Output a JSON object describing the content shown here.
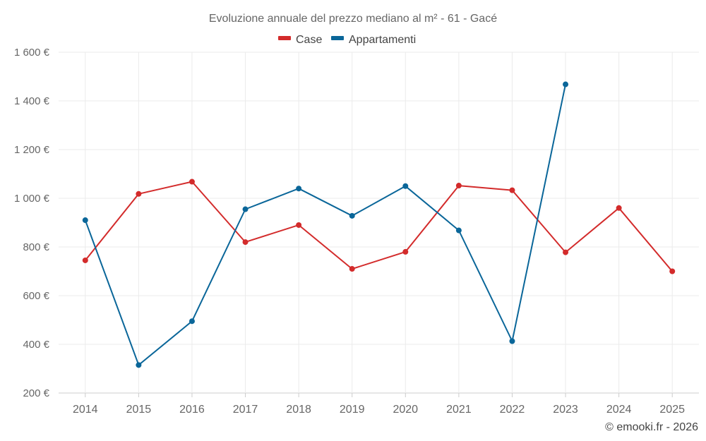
{
  "chart_data": {
    "type": "line",
    "title": "Evoluzione annuale del prezzo mediano al m² - 61 - Gacé",
    "categories": [
      "2014",
      "2015",
      "2016",
      "2017",
      "2018",
      "2019",
      "2020",
      "2021",
      "2022",
      "2023",
      "2024",
      "2025"
    ],
    "series": [
      {
        "name": "Case",
        "color": "#d32b2b",
        "values": [
          745,
          1018,
          1068,
          820,
          890,
          710,
          780,
          1052,
          1033,
          778,
          960,
          700
        ]
      },
      {
        "name": "Appartamenti",
        "color": "#0a6699",
        "values": [
          910,
          315,
          495,
          955,
          1040,
          928,
          1050,
          868,
          413,
          1468,
          null,
          null
        ]
      }
    ],
    "ylim": [
      200,
      1600
    ],
    "yticks": [
      200,
      400,
      600,
      800,
      1000,
      1200,
      1400,
      1600
    ],
    "ytick_labels": [
      "200 €",
      "400 €",
      "600 €",
      "800 €",
      "1 000 €",
      "1 200 €",
      "1 400 €",
      "1 600 €"
    ],
    "xlabel": "",
    "ylabel": "",
    "grid": true,
    "legend": "top-center"
  },
  "credit": "© emooki.fr - 2026"
}
